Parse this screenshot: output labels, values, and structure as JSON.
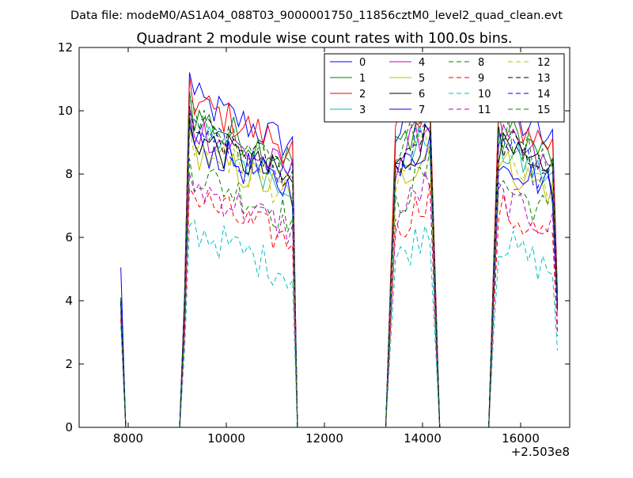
{
  "chart_data": {
    "type": "line",
    "suptitle": "Data file: modeM0/AS1A04_088T03_9000001750_11856cztM0_level2_quad_clean.evt",
    "title": "Quadrant 2 module wise count rates with 100.0s bins.",
    "xlabel": "",
    "ylabel": "",
    "x_offset_label": "+2.503e8",
    "xlim": [
      7000,
      17000
    ],
    "ylim": [
      0,
      12
    ],
    "x_ticks": [
      8000,
      10000,
      12000,
      14000,
      16000
    ],
    "x_tick_labels": [
      "8000",
      "10000",
      "12000",
      "14000",
      "16000"
    ],
    "y_ticks": [
      0,
      2,
      4,
      6,
      8,
      10,
      12
    ],
    "y_tick_labels": [
      "0",
      "2",
      "4",
      "6",
      "8",
      "10",
      "12"
    ],
    "grid": false,
    "legend_position": "top-right",
    "bin_width_s": 100,
    "segments": [
      {
        "start": 7850,
        "end": 7950
      },
      {
        "start": 9150,
        "end": 11350
      },
      {
        "start": 13350,
        "end": 14250
      },
      {
        "start": 15450,
        "end": 16750
      }
    ],
    "series": [
      {
        "name": "0",
        "color": "#0000ff",
        "dash": "solid",
        "mean": 9.5,
        "start_value": 5.05
      },
      {
        "name": "1",
        "color": "#008000",
        "dash": "solid",
        "mean": 9.0,
        "start_value": 4.1
      },
      {
        "name": "2",
        "color": "#ff0000",
        "dash": "solid",
        "mean": 9.4,
        "start_value": 4.0
      },
      {
        "name": "3",
        "color": "#00bfbf",
        "dash": "solid",
        "mean": 8.3,
        "start_value": 3.8
      },
      {
        "name": "4",
        "color": "#bf00bf",
        "dash": "solid",
        "mean": 8.6,
        "start_value": 4.0
      },
      {
        "name": "5",
        "color": "#bfbf00",
        "dash": "solid",
        "mean": 7.9,
        "start_value": 3.7
      },
      {
        "name": "6",
        "color": "#000000",
        "dash": "solid",
        "mean": 8.3,
        "start_value": 3.9
      },
      {
        "name": "7",
        "color": "#0000ff",
        "dash": "solid",
        "mean": 8.1,
        "start_value": 3.9
      },
      {
        "name": "8",
        "color": "#008000",
        "dash": "dashed",
        "mean": 7.2,
        "start_value": 3.6
      },
      {
        "name": "9",
        "color": "#ff0000",
        "dash": "dashed",
        "mean": 6.4,
        "start_value": 3.4
      },
      {
        "name": "10",
        "color": "#00bfbf",
        "dash": "dashed",
        "mean": 5.4,
        "start_value": 3.2
      },
      {
        "name": "11",
        "color": "#bf00bf",
        "dash": "dashed",
        "mean": 6.8,
        "start_value": 3.5
      },
      {
        "name": "12",
        "color": "#bfbf00",
        "dash": "dashed",
        "mean": 8.0,
        "start_value": 3.8
      },
      {
        "name": "13",
        "color": "#000000",
        "dash": "dashed",
        "mean": 8.6,
        "start_value": 4.0
      },
      {
        "name": "14",
        "color": "#0000ff",
        "dash": "dashed",
        "mean": 8.4,
        "start_value": 3.9
      },
      {
        "name": "15",
        "color": "#008000",
        "dash": "dashed",
        "mean": 8.9,
        "start_value": 4.1
      }
    ]
  }
}
